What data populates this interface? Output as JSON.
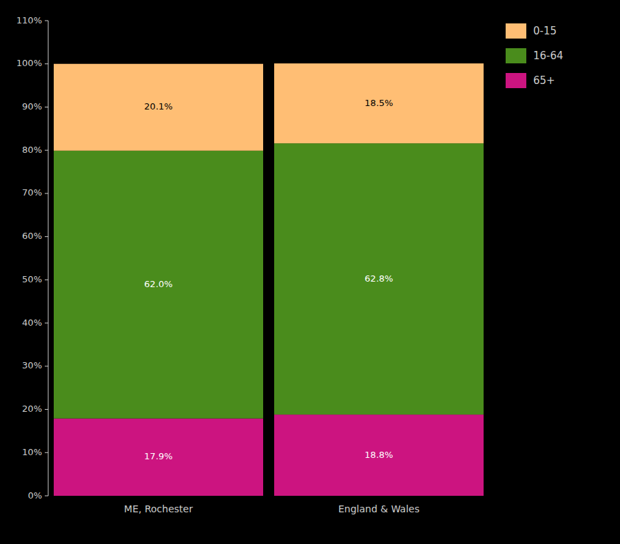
{
  "chart_data": {
    "type": "bar",
    "stacked": true,
    "categories": [
      "ME, Rochester",
      "England & Wales"
    ],
    "series": [
      {
        "name": "65+",
        "color": "#CC1480",
        "values": [
          17.9,
          18.8
        ],
        "value_labels": [
          "17.9%",
          "18.8%"
        ]
      },
      {
        "name": "16-64",
        "color": "#4A8C1C",
        "values": [
          62.0,
          62.8
        ],
        "value_labels": [
          "62.0%",
          "62.8%"
        ]
      },
      {
        "name": "0-15",
        "color": "#FFBE74",
        "values": [
          20.1,
          18.5
        ],
        "value_labels": [
          "20.1%",
          "18.5%"
        ]
      }
    ],
    "ylim": [
      0,
      110
    ],
    "yticks": [
      {
        "value": 0,
        "label": "0%"
      },
      {
        "value": 10,
        "label": "10%"
      },
      {
        "value": 20,
        "label": "20%"
      },
      {
        "value": 30,
        "label": "30%"
      },
      {
        "value": 40,
        "label": "40%"
      },
      {
        "value": 50,
        "label": "50%"
      },
      {
        "value": 60,
        "label": "60%"
      },
      {
        "value": 70,
        "label": "70%"
      },
      {
        "value": 80,
        "label": "80%"
      },
      {
        "value": 90,
        "label": "90%"
      },
      {
        "value": 100,
        "label": "100%"
      },
      {
        "value": 110,
        "label": "110%"
      }
    ],
    "grid": false,
    "legend": "right",
    "data_labels": true
  }
}
